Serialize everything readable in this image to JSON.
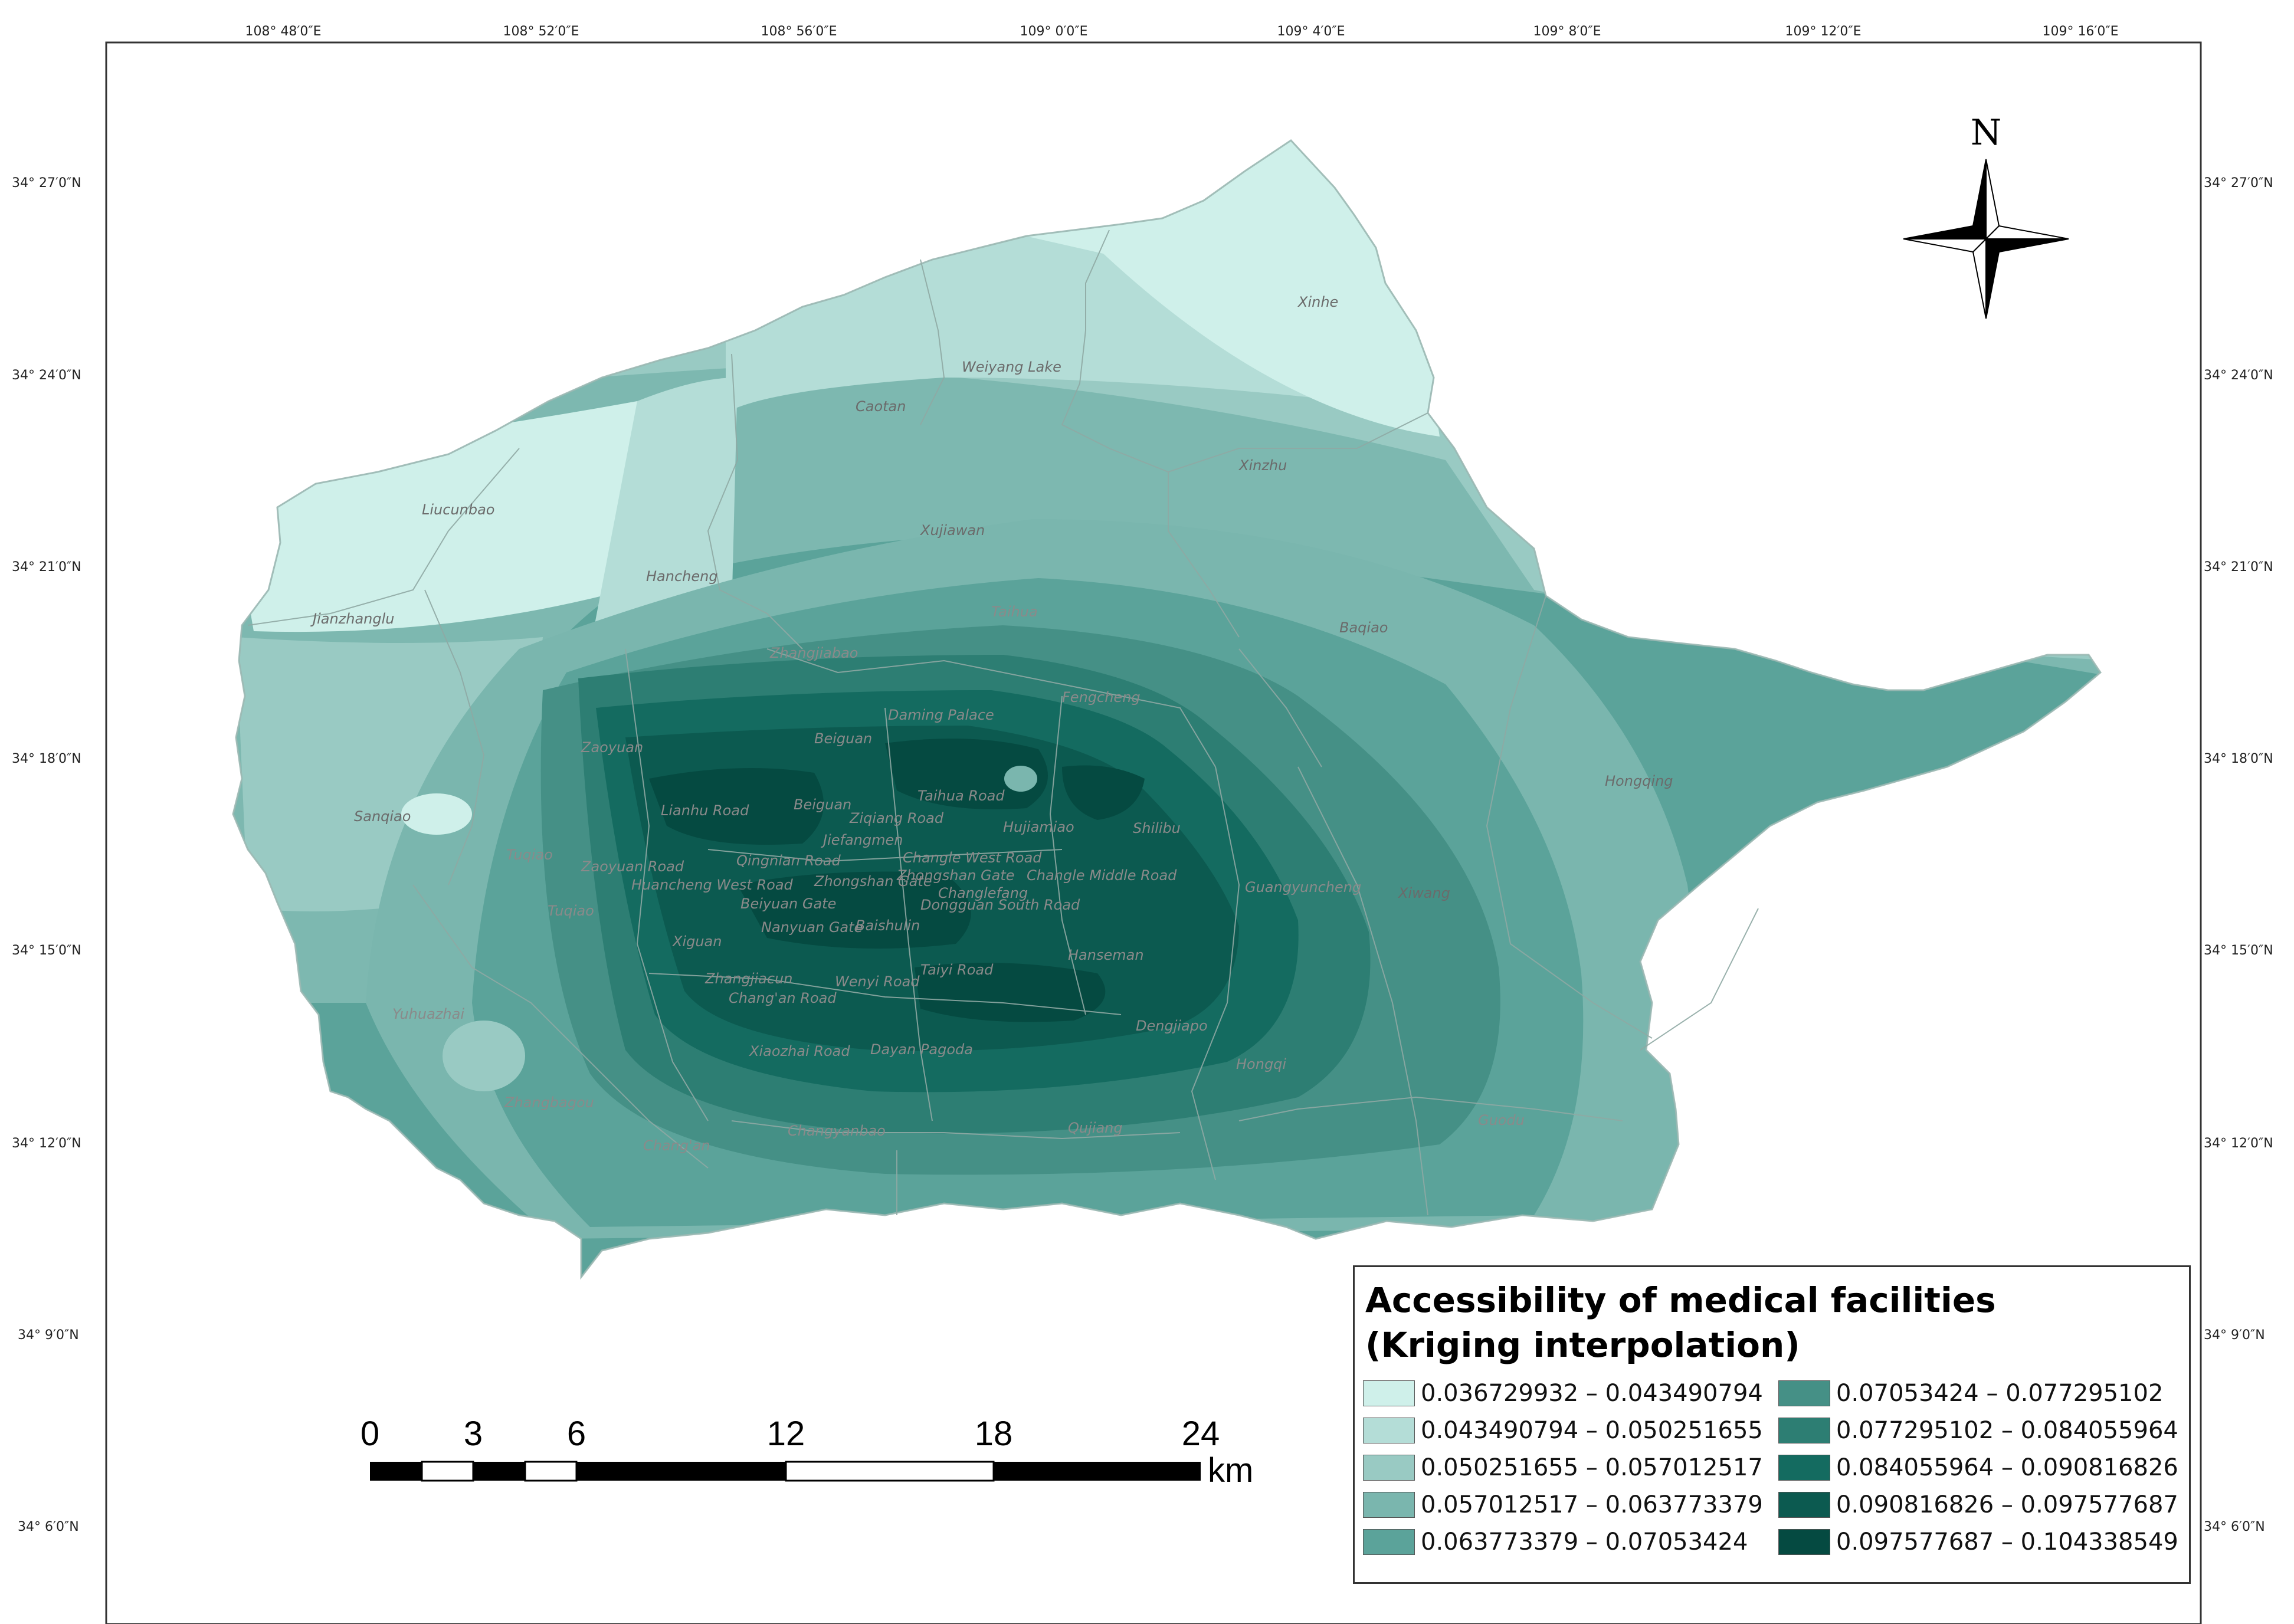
{
  "axes": {
    "top_ticks": [
      "108° 48′0″E",
      "108° 52′0″E",
      "108° 56′0″E",
      "109° 0′0″E",
      "109° 4′0″E",
      "109° 8′0″E",
      "109° 12′0″E",
      "109° 16′0″E"
    ],
    "left_ticks": [
      "34° 27′0″N",
      "34° 24′0″N",
      "34° 21′0″N",
      "34° 18′0″N",
      "34° 15′0″N",
      "34° 12′0″N",
      "34° 9′0″N",
      "34° 6′0″N"
    ],
    "right_ticks": [
      "34° 27′0″N",
      "34° 24′0″N",
      "34° 21′0″N",
      "34° 18′0″N",
      "34° 15′0″N",
      "34° 12′0″N",
      "34° 9′0″N",
      "34° 6′0″N"
    ]
  },
  "north_arrow": {
    "label": "N",
    "icon": "compass-rose-icon"
  },
  "scale_bar": {
    "labels": [
      "0",
      "3",
      "6",
      "12",
      "18",
      "24"
    ],
    "unit": "km"
  },
  "legend": {
    "title_line1": "Accessibility of medical facilities",
    "title_line2": "(Kriging interpolation)",
    "items": [
      {
        "label": "0.036729932 – 0.043490794",
        "color": "#cff0ea"
      },
      {
        "label": "0.043490794 – 0.050251655",
        "color": "#b4ddd7"
      },
      {
        "label": "0.050251655 – 0.057012517",
        "color": "#99cac3"
      },
      {
        "label": "0.057012517 – 0.063773379",
        "color": "#7ab6ae"
      },
      {
        "label": "0.063773379 – 0.07053424",
        "color": "#5ba39a"
      },
      {
        "label": "0.07053424 – 0.077295102",
        "color": "#459086"
      },
      {
        "label": "0.077295102 – 0.084055964",
        "color": "#2d7e73"
      },
      {
        "label": "0.084055964 – 0.090816826",
        "color": "#146b60"
      },
      {
        "label": "0.090816826 – 0.097577687",
        "color": "#0c5a50"
      },
      {
        "label": "0.097577687 – 0.104338549",
        "color": "#054a41"
      }
    ]
  },
  "places": {
    "xinhe": "Xinhe",
    "weiyang_lake": "Weiyang Lake",
    "caotan": "Caotan",
    "xinzhu": "Xinzhu",
    "liucunbao": "Liucunbao",
    "xujiawan": "Xujiawan",
    "hancheng": "Hancheng",
    "jianzhanglu": "Jianzhanglu",
    "baqiao": "Baqiao",
    "taihua": "Taihua",
    "zhangjiabao": "Zhangjiabao",
    "daming_palace": "Daming Palace",
    "fengcheng": "Fengcheng",
    "sanqiao": "Sanqiao",
    "zaoyuan": "Zaoyuan",
    "hongqing": "Hongqing",
    "taihua_road": "Taihua Road",
    "ziqiang_road": "Ziqiang Road",
    "beiguan": "Beiguan",
    "jiefangmen": "Jiefangmen",
    "hujiamiao": "Hujiamiao",
    "shilibu": "Shilibu",
    "changle_west_road": "Changle West Road",
    "qingnian_road": "Qingnian Road",
    "zaoyuan_road": "Zaoyuan Road",
    "lianhu_road": "Lianhu Road",
    "zhongshan_gate": "Zhongshan Gate",
    "changle_middle_road": "Changle Middle Road",
    "huancheng_west_road": "Huancheng West Road",
    "changlefang": "Changlefang",
    "guangyuncheng": "Guangyuncheng",
    "xiwang": "Xiwang",
    "beiyuan_gate": "Beiyuan Gate",
    "dongguan_south_road": "Dongguan South Road",
    "tuqiao": "Tuqiao",
    "nanyuan_gate": "Nanyuan Gate",
    "baishulin": "Baishulin",
    "xiguan": "Xiguan",
    "hanseman": "Hanseman",
    "taiyi_road": "Taiyi Road",
    "zhangjiacun": "Zhangjiacun",
    "wenyi_road": "Wenyi Road",
    "changan_road": "Chang'an Road",
    "yuhuazhai": "Yuhuazhai",
    "dengjiapo": "Dengjiapo",
    "xiaozhai_road": "Xiaozhai Road",
    "dayan_pagoda": "Dayan Pagoda",
    "hongqi": "Hongqi",
    "zhangbagou": "Zhangbagou",
    "qujiang": "Qujiang",
    "guodu": "Guodu",
    "changyanbao": "Changyanbao",
    "changan": "Chang'an"
  },
  "colors": {
    "frame": "#333333",
    "boundary": "#8fa9a4"
  }
}
